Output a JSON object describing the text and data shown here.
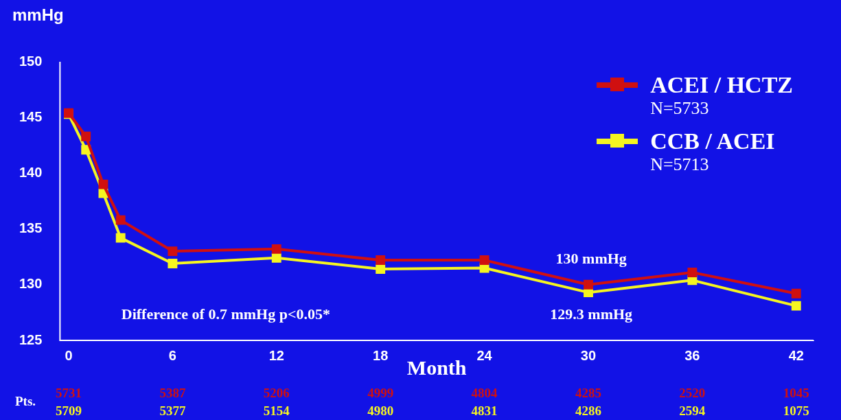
{
  "chart_data": {
    "type": "line",
    "ylabel": "mmHg",
    "xlabel": "Month",
    "x": [
      0,
      1,
      2,
      3,
      6,
      12,
      18,
      24,
      30,
      36,
      42
    ],
    "series": [
      {
        "name": "ACEI / HCTZ",
        "color": "#d01010",
        "values": [
          145.4,
          143.3,
          139,
          135.8,
          133,
          133.2,
          132.2,
          132.2,
          130,
          131.1,
          129.2
        ]
      },
      {
        "name": "CCB / ACEI",
        "color": "#f5f520",
        "values": [
          145.3,
          142.1,
          138.2,
          134.2,
          131.9,
          132.4,
          131.4,
          131.5,
          129.3,
          130.4,
          128.1
        ]
      }
    ],
    "xlim": [
      -0.5,
      43
    ],
    "xticks": [
      0,
      6,
      12,
      18,
      24,
      30,
      36,
      42
    ],
    "ylim": [
      125,
      150
    ],
    "yticks": [
      125,
      130,
      135,
      140,
      145,
      150
    ],
    "grid": false,
    "legend": "top right",
    "marker": "square",
    "line_style": "solid",
    "annotations": [
      "N=5733",
      "N=5713",
      "130 mmHg",
      "129.3 mmHg",
      "Difference of 0.7 mmHg p<0.05*",
      "Pts.",
      "5731",
      "5387",
      "5206",
      "4999",
      "4804",
      "4285",
      "2520",
      "1045",
      "5709",
      "5377",
      "5154",
      "4980",
      "4831",
      "4286",
      "2594",
      "1075"
    ]
  }
}
